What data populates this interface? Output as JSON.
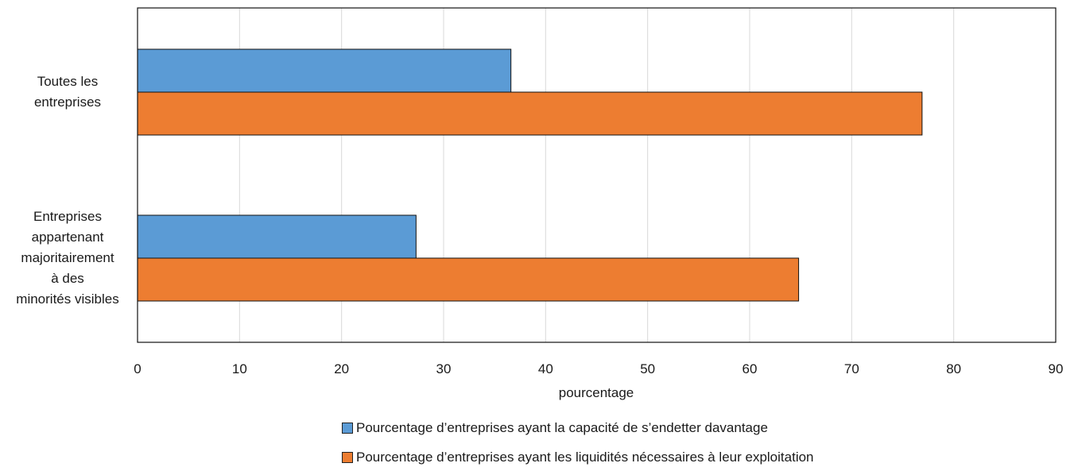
{
  "chart_data": {
    "type": "bar",
    "orientation": "horizontal",
    "categories": [
      [
        "Toutes les",
        "entreprises"
      ],
      [
        "Entreprises",
        "appartenant",
        "majoritairement",
        "à des",
        "minorités visibles"
      ]
    ],
    "series": [
      {
        "name": "Pourcentage d’entreprises ayant la capacité de s’endetter davantage",
        "values": [
          36.6,
          27.3
        ],
        "color": "#5b9bd5"
      },
      {
        "name": "Pourcentage d’entreprises ayant les liquidités nécessaires à leur exploitation",
        "values": [
          76.9,
          64.8
        ],
        "color": "#ed7d31"
      }
    ],
    "xlabel": "pourcentage",
    "xlim": [
      0,
      90
    ],
    "xticks": [
      "0",
      "10",
      "20",
      "30",
      "40",
      "50",
      "60",
      "70",
      "80",
      "90"
    ],
    "grid": "vertical",
    "legend_position": "bottom"
  }
}
